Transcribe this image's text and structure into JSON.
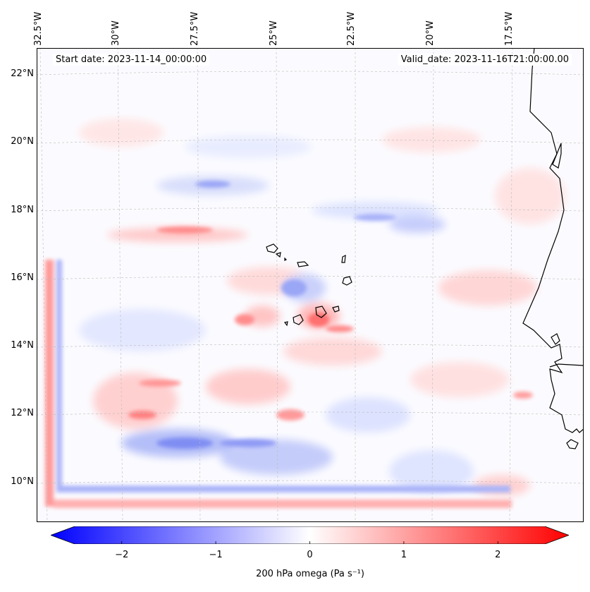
{
  "map": {
    "title_start": "Start date: 2023-11-14_00:00:00",
    "title_valid": "Valid_date: 2023-11-16T21:00:00.00",
    "lon_labels": [
      "32.5°W",
      "30°W",
      "27.5°W",
      "25°W",
      "22.5°W",
      "20°W",
      "17.5°W"
    ],
    "lat_labels": [
      "22°N",
      "20°N",
      "18°N",
      "16°N",
      "14°N",
      "12°N",
      "10°N"
    ],
    "colors": {
      "positive": "#ff0000",
      "negative": "#0000ff",
      "neutral": "#ffffff",
      "coast": "#000000"
    }
  },
  "colorbar": {
    "label": "200 hPa omega (Pa s⁻¹)",
    "min": -2.75,
    "max": 2.75,
    "ticks": [
      "−2",
      "−1",
      "0",
      "1",
      "2"
    ],
    "tick_values": [
      -2,
      -1,
      0,
      1,
      2
    ]
  }
}
